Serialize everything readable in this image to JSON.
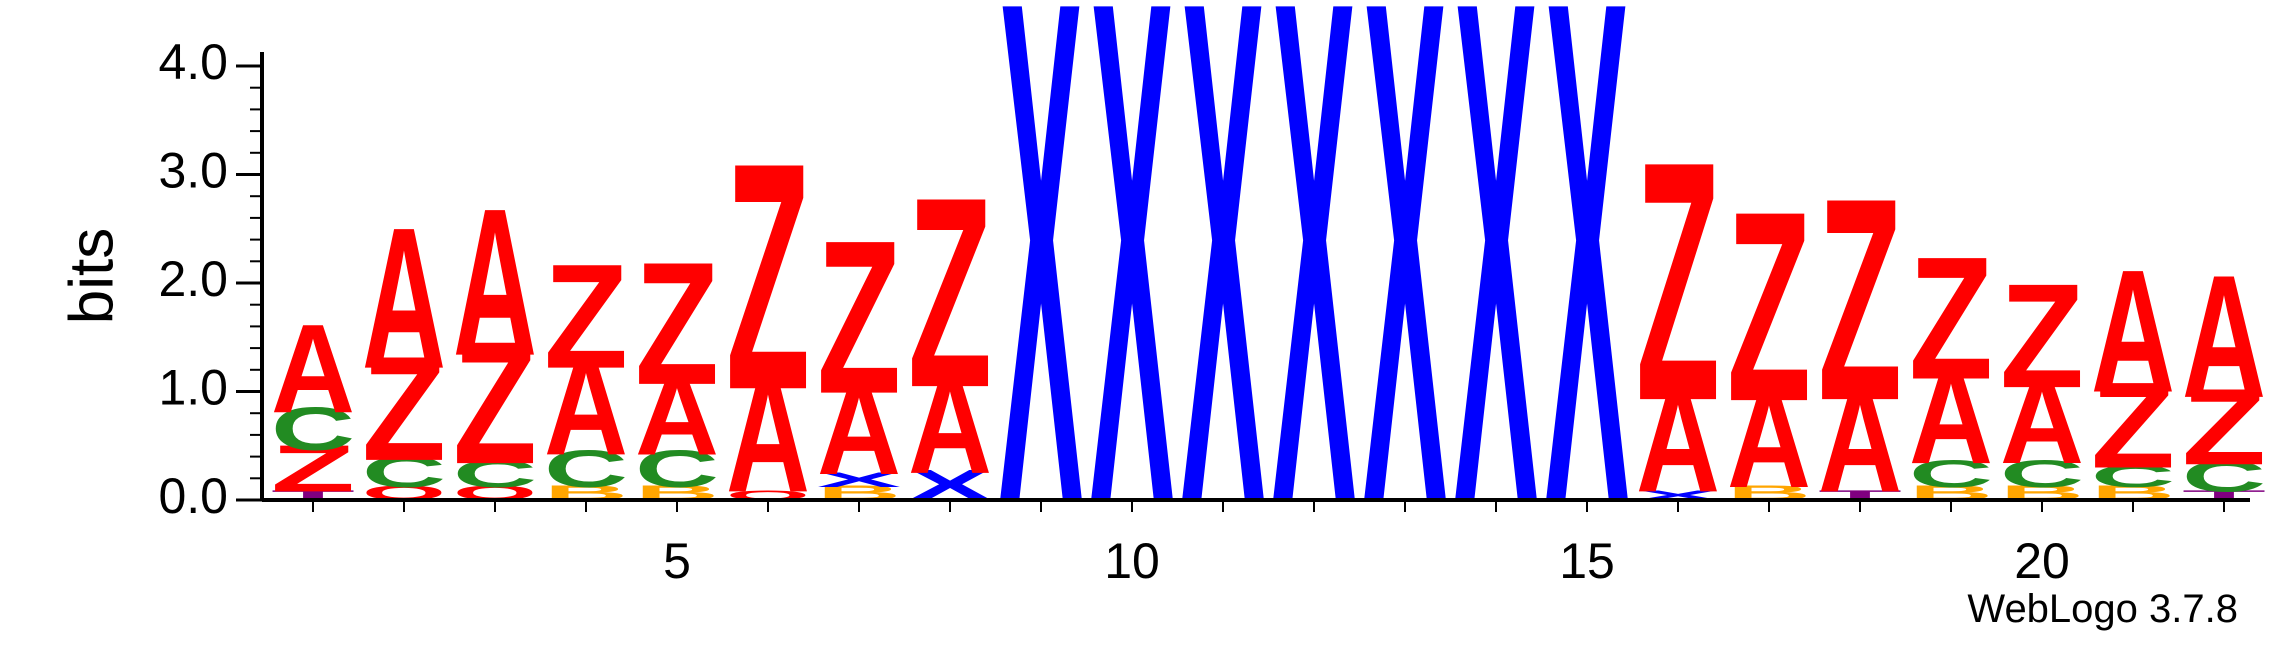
{
  "chart_data": {
    "type": "sequence_logo",
    "ylabel": "bits",
    "xlabel": "",
    "ylim": [
      0,
      4.0
    ],
    "yticks": [
      "0.0",
      "1.0",
      "2.0",
      "3.0",
      "4.0"
    ],
    "xticks": [
      5,
      10,
      15,
      20
    ],
    "positions": [
      1,
      22
    ],
    "credit": "WebLogo 3.7.8",
    "colors": {
      "A": "#ff0000",
      "Z": "#ff0000",
      "C": "#228b22",
      "X": "#0000ff",
      "B": "#ffa500",
      "T": "#800080"
    },
    "stacks": [
      [
        {
          "l": "T",
          "h": 0.08
        },
        {
          "l": "Z",
          "h": 0.38
        },
        {
          "l": "C",
          "h": 0.35
        },
        {
          "l": "A",
          "h": 0.72
        }
      ],
      [
        {
          "l": "O",
          "h": 0.12
        },
        {
          "l": "C",
          "h": 0.25
        },
        {
          "l": "Z",
          "h": 0.85
        },
        {
          "l": "A",
          "h": 1.15
        }
      ],
      [
        {
          "l": "O",
          "h": 0.12
        },
        {
          "l": "C",
          "h": 0.22
        },
        {
          "l": "Z",
          "h": 1.0
        },
        {
          "l": "A",
          "h": 1.2
        }
      ],
      [
        {
          "l": "B",
          "h": 0.12
        },
        {
          "l": "C",
          "h": 0.3
        },
        {
          "l": "A",
          "h": 0.8
        },
        {
          "l": "Z",
          "h": 0.85
        }
      ],
      [
        {
          "l": "B",
          "h": 0.12
        },
        {
          "l": "C",
          "h": 0.3
        },
        {
          "l": "A",
          "h": 0.65
        },
        {
          "l": "Z",
          "h": 1.0
        }
      ],
      [
        {
          "l": "O",
          "h": 0.08
        },
        {
          "l": "A",
          "h": 0.95
        },
        {
          "l": "Z",
          "h": 1.85
        }
      ],
      [
        {
          "l": "B",
          "h": 0.12
        },
        {
          "l": "X",
          "h": 0.12
        },
        {
          "l": "A",
          "h": 0.75
        },
        {
          "l": "Z",
          "h": 1.25
        }
      ],
      [
        {
          "l": "X",
          "h": 0.25
        },
        {
          "l": "A",
          "h": 0.8
        },
        {
          "l": "Z",
          "h": 1.55
        }
      ],
      [
        {
          "l": "X",
          "h": 4.1
        }
      ],
      [
        {
          "l": "X",
          "h": 4.1
        }
      ],
      [
        {
          "l": "X",
          "h": 4.1
        }
      ],
      [
        {
          "l": "X",
          "h": 4.1
        }
      ],
      [
        {
          "l": "X",
          "h": 4.1
        }
      ],
      [
        {
          "l": "X",
          "h": 4.1
        }
      ],
      [
        {
          "l": "X",
          "h": 4.1
        }
      ],
      [
        {
          "l": "X",
          "h": 0.08
        },
        {
          "l": "A",
          "h": 0.85
        },
        {
          "l": "Z",
          "h": 1.95
        }
      ],
      [
        {
          "l": "B",
          "h": 0.12
        },
        {
          "l": "A",
          "h": 0.8
        },
        {
          "l": "Z",
          "h": 1.55
        }
      ],
      [
        {
          "l": "T",
          "h": 0.08
        },
        {
          "l": "A",
          "h": 0.85
        },
        {
          "l": "Z",
          "h": 1.65
        }
      ],
      [
        {
          "l": "B",
          "h": 0.12
        },
        {
          "l": "C",
          "h": 0.22
        },
        {
          "l": "A",
          "h": 0.78
        },
        {
          "l": "Z",
          "h": 1.0
        }
      ],
      [
        {
          "l": "B",
          "h": 0.12
        },
        {
          "l": "C",
          "h": 0.22
        },
        {
          "l": "A",
          "h": 0.7
        },
        {
          "l": "Z",
          "h": 0.85
        }
      ],
      [
        {
          "l": "B",
          "h": 0.12
        },
        {
          "l": "C",
          "h": 0.18
        },
        {
          "l": "Z",
          "h": 0.7
        },
        {
          "l": "A",
          "h": 1.0
        }
      ],
      [
        {
          "l": "T",
          "h": 0.08
        },
        {
          "l": "C",
          "h": 0.25
        },
        {
          "l": "Z",
          "h": 0.62
        },
        {
          "l": "A",
          "h": 1.0
        }
      ]
    ]
  }
}
